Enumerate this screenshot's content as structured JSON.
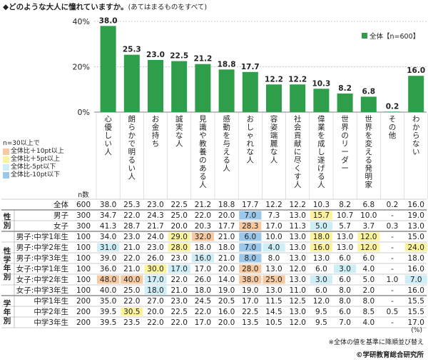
{
  "title": "◆どのような大人に憧れていますか。",
  "subtitle": "(あてはまるものをすべて)",
  "footnote": "※全体の値を基準に降順並び替え",
  "copyright": "©学研教育総合研究所",
  "table_unit": "(%)",
  "n_header": "n数",
  "legend_notes": {
    "base": "n=30以上で",
    "items": [
      {
        "label": "全体比＋10pt以上",
        "color": "#f7c9a0"
      },
      {
        "label": "全体比＋5pt以上",
        "color": "#fbf29c"
      },
      {
        "label": "全体比-5pt以下",
        "color": "#cdeef6"
      },
      {
        "label": "全体比-10pt以下",
        "color": "#9ac7ea"
      }
    ]
  },
  "colors": {
    "bar": "#2e9e4a",
    "grid": "#bbbbbb"
  },
  "chart_data": {
    "type": "bar",
    "categories": [
      "心優しい人",
      "朗らかで明るい人",
      "お金持ち",
      "誠実な人",
      "見識や教養のある人",
      "感動を与える人",
      "おしゃれな人",
      "容姿端麗な人",
      "社会貢献に尽くす人",
      "偉業を成し遂げる人",
      "世界のリーダー",
      "世界を変える発明家",
      "その他",
      "わからない"
    ],
    "series": [
      {
        "name": "全体【n=600】",
        "values": [
          38.0,
          25.3,
          23.0,
          22.5,
          21.2,
          18.8,
          17.7,
          12.2,
          12.2,
          10.3,
          8.2,
          6.8,
          0.2,
          16.0
        ]
      }
    ],
    "yticks": [
      "40%",
      "20%",
      "0%"
    ],
    "ylim": [
      0,
      40
    ],
    "legend": "top-right"
  },
  "table": {
    "rows": [
      {
        "group": "",
        "label": "全体",
        "n": "600",
        "values": [
          "38.0",
          "25.3",
          "23.0",
          "22.5",
          "21.2",
          "18.8",
          "17.7",
          "12.2",
          "12.2",
          "10.3",
          "8.2",
          "6.8",
          "0.2",
          "16.0"
        ],
        "marks": [
          0,
          0,
          0,
          0,
          0,
          0,
          0,
          0,
          0,
          0,
          0,
          0,
          0,
          0
        ]
      },
      {
        "group": "性別",
        "label": "男子",
        "n": "300",
        "values": [
          "34.7",
          "22.0",
          "24.3",
          "25.0",
          "22.0",
          "20.0",
          "7.0",
          "7.3",
          "13.0",
          "15.7",
          "10.7",
          "10.0",
          "-",
          "19.0"
        ],
        "marks": [
          0,
          0,
          0,
          0,
          0,
          0,
          4,
          0,
          0,
          2,
          0,
          0,
          0,
          0
        ]
      },
      {
        "group": "",
        "label": "女子",
        "n": "300",
        "values": [
          "41.3",
          "28.7",
          "21.7",
          "20.0",
          "20.3",
          "17.7",
          "28.3",
          "17.0",
          "11.3",
          "5.0",
          "5.7",
          "3.7",
          "0.3",
          "13.0"
        ],
        "marks": [
          0,
          0,
          0,
          0,
          0,
          0,
          1,
          0,
          0,
          3,
          0,
          0,
          0,
          0
        ]
      },
      {
        "group": "性学年別",
        "label": "男子:中学1年生",
        "n": "100",
        "values": [
          "34.0",
          "23.0",
          "24.0",
          "29.0",
          "32.0",
          "21.0",
          "6.0",
          "10.0",
          "13.0",
          "18.0",
          "13.0",
          "12.0",
          "-",
          "15.0"
        ],
        "marks": [
          0,
          0,
          0,
          2,
          1,
          0,
          4,
          0,
          0,
          2,
          0,
          2,
          0,
          0
        ]
      },
      {
        "group": "",
        "label": "男子:中学2年生",
        "n": "100",
        "values": [
          "31.0",
          "21.0",
          "23.0",
          "28.0",
          "18.0",
          "18.0",
          "7.0",
          "4.0",
          "13.0",
          "16.0",
          "13.0",
          "12.0",
          "-",
          "24.0"
        ],
        "marks": [
          3,
          0,
          0,
          2,
          0,
          0,
          4,
          3,
          0,
          2,
          0,
          2,
          0,
          2
        ]
      },
      {
        "group": "",
        "label": "男子:中学3年生",
        "n": "100",
        "values": [
          "39.0",
          "22.0",
          "26.0",
          "23.0",
          "16.0",
          "21.0",
          "8.0",
          "8.0",
          "13.0",
          "13.0",
          "6.0",
          "6.0",
          "-",
          "18.0"
        ],
        "marks": [
          0,
          0,
          0,
          0,
          3,
          0,
          4,
          0,
          0,
          0,
          0,
          0,
          0,
          0
        ]
      },
      {
        "group": "",
        "label": "女子:中学1年生",
        "n": "100",
        "values": [
          "36.0",
          "21.0",
          "30.0",
          "17.0",
          "17.0",
          "20.0",
          "28.0",
          "13.0",
          "12.0",
          "6.0",
          "3.0",
          "4.0",
          "-",
          "16.0"
        ],
        "marks": [
          0,
          0,
          2,
          3,
          0,
          0,
          1,
          0,
          0,
          0,
          3,
          0,
          0,
          0
        ]
      },
      {
        "group": "",
        "label": "女子:中学2年生",
        "n": "100",
        "values": [
          "48.0",
          "40.0",
          "17.0",
          "22.0",
          "26.0",
          "14.0",
          "38.0",
          "25.0",
          "13.0",
          "3.0",
          "6.0",
          "5.0",
          "1.0",
          "7.0"
        ],
        "marks": [
          1,
          1,
          3,
          0,
          0,
          0,
          1,
          1,
          0,
          3,
          0,
          0,
          0,
          3
        ]
      },
      {
        "group": "",
        "label": "女子:中学3年生",
        "n": "100",
        "values": [
          "40.0",
          "25.0",
          "18.0",
          "21.0",
          "18.0",
          "19.0",
          "19.0",
          "13.0",
          "11.0",
          "6.0",
          "8.0",
          "2.0",
          "-",
          "16.0"
        ],
        "marks": [
          0,
          0,
          3,
          0,
          0,
          0,
          0,
          0,
          0,
          0,
          0,
          0,
          0,
          0
        ]
      },
      {
        "group": "学年別",
        "label": "中学1年生",
        "n": "200",
        "values": [
          "35.0",
          "22.0",
          "27.0",
          "23.0",
          "24.5",
          "20.5",
          "17.0",
          "11.5",
          "12.5",
          "12.0",
          "8.0",
          "8.0",
          "-",
          "15.5"
        ],
        "marks": [
          0,
          0,
          0,
          0,
          0,
          0,
          0,
          0,
          0,
          0,
          0,
          0,
          0,
          0
        ]
      },
      {
        "group": "",
        "label": "中学2年生",
        "n": "200",
        "values": [
          "39.5",
          "30.5",
          "20.0",
          "22.5",
          "22.0",
          "16.0",
          "22.5",
          "14.5",
          "13.0",
          "9.5",
          "6.0",
          "8.5",
          "0.5",
          "15.5"
        ],
        "marks": [
          0,
          2,
          0,
          0,
          0,
          0,
          0,
          0,
          0,
          0,
          0,
          0,
          0,
          0
        ]
      },
      {
        "group": "",
        "label": "中学3年生",
        "n": "200",
        "values": [
          "39.5",
          "23.5",
          "22.0",
          "22.0",
          "17.0",
          "20.0",
          "13.5",
          "10.5",
          "12.0",
          "9.5",
          "7.0",
          "4.0",
          "-",
          "17.0"
        ],
        "marks": [
          0,
          0,
          0,
          0,
          0,
          0,
          0,
          0,
          0,
          0,
          0,
          0,
          0,
          0
        ]
      }
    ]
  }
}
